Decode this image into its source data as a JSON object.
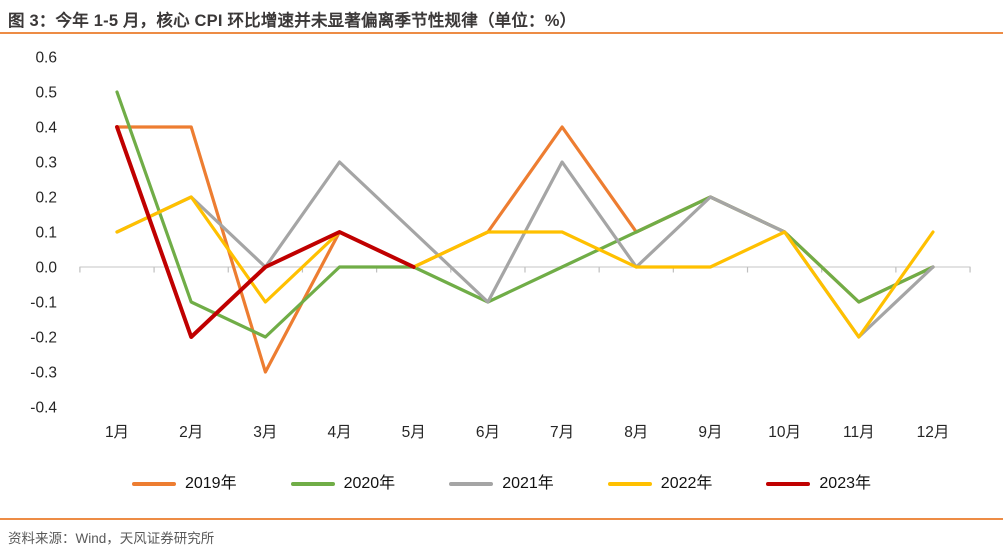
{
  "header": {
    "title": "图 3：今年 1-5 月，核心 CPI 环比增速并未显著偏离季节性规律（单位：%）"
  },
  "footer": {
    "source": "资料来源：Wind，天风证券研究所"
  },
  "colors": {
    "accent_rule": "#ED8C45",
    "axis_line": "#D9D9D9",
    "tick_mark": "#BFBFBF",
    "axis_label": "#262626",
    "title_text": "#3B3838",
    "source_text": "#595959"
  },
  "chart_data": {
    "type": "line",
    "title": "今年 1-5 月，核心 CPI 环比增速并未显著偏离季节性规律",
    "unit": "%",
    "categories": [
      "1月",
      "2月",
      "3月",
      "4月",
      "5月",
      "6月",
      "7月",
      "8月",
      "9月",
      "10月",
      "11月",
      "12月"
    ],
    "ylim": [
      -0.4,
      0.6
    ],
    "ytick_step": 0.1,
    "ytick_labels": [
      "0.6",
      "0.5",
      "0.4",
      "0.3",
      "0.2",
      "0.1",
      "0.0",
      "-0.1",
      "-0.2",
      "-0.3",
      "-0.4"
    ],
    "grid": false,
    "legend_position": "bottom",
    "series": [
      {
        "name": "2019年",
        "color": "#ED7D31",
        "stroke_width": 3.2,
        "values": [
          0.4,
          0.4,
          -0.3,
          0.1,
          0.0,
          0.1,
          0.4,
          0.1,
          0.2,
          0.1,
          -0.1,
          0.0
        ]
      },
      {
        "name": "2020年",
        "color": "#70AD47",
        "stroke_width": 3.2,
        "values": [
          0.5,
          -0.1,
          -0.2,
          0.0,
          0.0,
          -0.1,
          0.0,
          0.1,
          0.2,
          0.1,
          -0.1,
          0.0
        ]
      },
      {
        "name": "2021年",
        "color": "#A5A5A5",
        "stroke_width": 3.2,
        "values": [
          0.1,
          0.2,
          0.0,
          0.3,
          0.1,
          -0.1,
          0.3,
          0.0,
          0.2,
          0.1,
          -0.2,
          0.0
        ]
      },
      {
        "name": "2022年",
        "color": "#FFC000",
        "stroke_width": 3.2,
        "values": [
          0.1,
          0.2,
          -0.1,
          0.1,
          0.0,
          0.1,
          0.1,
          0.0,
          0.0,
          0.1,
          -0.2,
          0.1
        ]
      },
      {
        "name": "2023年",
        "color": "#C00000",
        "stroke_width": 4,
        "values": [
          0.4,
          -0.2,
          0.0,
          0.1,
          0.0,
          null,
          null,
          null,
          null,
          null,
          null,
          null
        ]
      }
    ]
  }
}
